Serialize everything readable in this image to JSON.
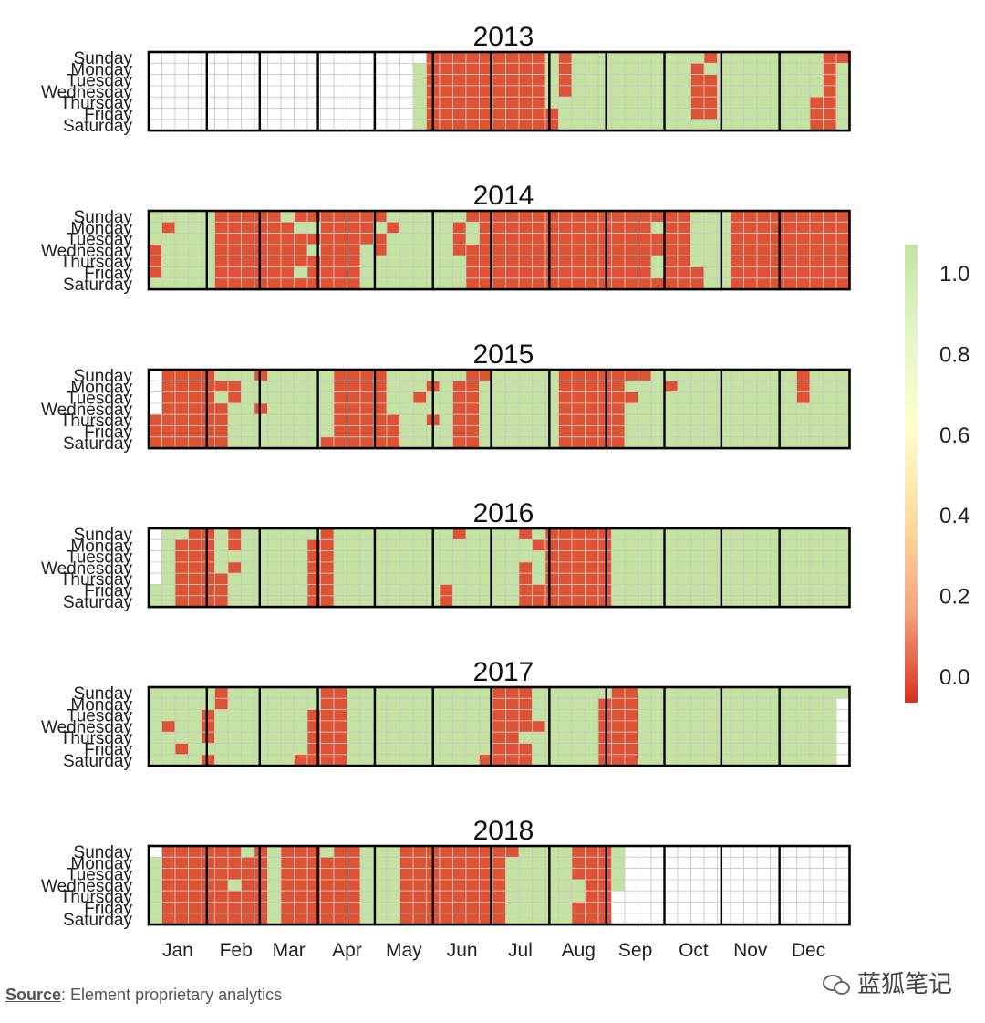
{
  "chart_data": {
    "type": "heatmap",
    "title": "",
    "years": [
      "2013",
      "2014",
      "2015",
      "2016",
      "2017",
      "2018"
    ],
    "weekdays": [
      "Sunday",
      "Monday",
      "Tuesday",
      "Wednesday",
      "Thursday",
      "Friday",
      "Saturday"
    ],
    "months": [
      "Jan",
      "Feb",
      "Mar",
      "Apr",
      "May",
      "Jun",
      "Jul",
      "Aug",
      "Sep",
      "Oct",
      "Nov",
      "Dec"
    ],
    "colorbar": {
      "min": 0.0,
      "max": 1.0,
      "ticks": [
        "1.0",
        "0.8",
        "0.6",
        "0.4",
        "0.2",
        "0.0"
      ],
      "low_color": "#e34a33",
      "high_color": "#c7e5a0"
    },
    "grid": true,
    "legend": "right",
    "value_scale": "0 = red, 1 = green; values are per-day weekly patterns",
    "color_low": "#de5334",
    "color_high": "#c5e3a0",
    "color_missing": "#ffffff",
    "years_data": [
      {
        "year": "2013",
        "weeks": [
          "NNNNNNN",
          "NNNNNNN",
          "NNNNNNN",
          "NNNNNNN",
          "NNNNNNN",
          "NNNNNNN",
          "NNNNNNN",
          "NNNNNNN",
          "NNNNNNN",
          "NNNNNNN",
          "NNNNNNN",
          "NNNNNNN",
          "NNNNNNN",
          "NNNNNNN",
          "NNNNNNN",
          "NNNNNNN",
          "NNNNNNN",
          "NNNNNNN",
          "NNNNNNN",
          "NNNNNNN",
          "NGGGGGG",
          "RRRRRRR",
          "RRRRRRR",
          "RRRRRRR",
          "RRRRRRR",
          "RRRRRRR",
          "RRRRRRR",
          "RRRRRRR",
          "RRRRRRR",
          "RRRRRRR",
          "GGGGGRR",
          "RRRRGGG",
          "GGGGGGG",
          "GGGGGGG",
          "GGGGGGG",
          "GGGGGGG",
          "GGGGGGG",
          "GGGGGGG",
          "GGGGGGG",
          "GGGGGGG",
          "GGGGGGG",
          "GRRRRRG",
          "RGRRRRG",
          "GGGGGGG",
          "GGGGGGG",
          "GGGGGGG",
          "GGGGGGG",
          "GGGGGGG",
          "GGGGGGG",
          "GGGGGGG",
          "GGGGRRR",
          "RRRRRRR",
          "RGGGGGGN"
        ]
      },
      {
        "year": "2014",
        "weeks": [
          "GGGRRRG",
          "GRGGGGG",
          "GGGGGGG",
          "GGGGGGG",
          "GGGGGGG",
          "RRRRRRR",
          "RRRRRRR",
          "RRRRRRR",
          "RRRRRRR",
          "RRRRRRR",
          "GRRRRRR",
          "RGRRRGR",
          "RGRGRRR",
          "RRRRRRR",
          "RRRRRRR",
          "RRRRRRR",
          "RRRGGGG",
          "RGRRGGG",
          "GRGGGGG",
          "GGGGGGG",
          "GGGGGGG",
          "GGGGGGG",
          "GGGGGGG",
          "GRRRGGG",
          "RGGRRRR",
          "RRRRRRR",
          "RRRRRRR",
          "RRRRRRR",
          "RRRRRRR",
          "RRRRRRR",
          "RRRRRRR",
          "RRRRRRR",
          "RRRRRRR",
          "RRRRRRR",
          "RRRRRRR",
          "RRRRRRR",
          "RRRRRRR",
          "RRRRRRR",
          "RGRRGGR",
          "RRRRRRR",
          "RRRRRRR",
          "GGGGGRR",
          "GGGGGGG",
          "GGGGGGG",
          "RRRRRRR",
          "RRRRRRR",
          "RRRRRRR",
          "RRRRRRR",
          "RRRRRRR",
          "RRRRRRR",
          "RRRRRRR",
          "RRRRRRR",
          "RRRRRRR"
        ]
      },
      {
        "year": "2015",
        "weeks": [
          "NNNNRRR",
          "RRRRRRR",
          "RRRRRRR",
          "RRRRRRR",
          "RRRRRRR",
          "GRGRRRR",
          "GRRGGGG",
          "GGGGGGG",
          "RGGRGGG",
          "GGGGGGG",
          "GGGGGGG",
          "GGGGGGG",
          "GGGGGGG",
          "GGGGGGR",
          "RRRRRRR",
          "RRRRRRR",
          "RRRRRRR",
          "RRRRRRR",
          "GGGGRRR",
          "GGGGGGG",
          "GGRGGGG",
          "GRGGRGG",
          "GGGGGGG",
          "GRRRRRR",
          "RRRRRRR",
          "RGGGGGG",
          "GGGGGGG",
          "GGGGGGG",
          "GGGGGGG",
          "GGGGGGG",
          "GGGGGGG",
          "RRRRRRR",
          "RRRRRRR",
          "RRRRRRR",
          "RRRRRRR",
          "RRRRRRR",
          "RGRGGGG",
          "RGGGGGG",
          "GGGGGGG",
          "GRGGGGG",
          "GGGGGGG",
          "GGGGGGG",
          "GGGGGGG",
          "GGGGGGG",
          "GGGGGGG",
          "GGGGGGG",
          "GGGGGGG",
          "GGGGGGG",
          "GGGGGGG",
          "RRRGGGG",
          "GGGGGGG",
          "GGGGGGG",
          "GGGGGGG"
        ]
      },
      {
        "year": "2016",
        "weeks": [
          "NNNNNGG",
          "GGGGGGG",
          "GRRRRRR",
          "RRRRRRR",
          "RRRRRRR",
          "GGGGRRR",
          "RRGRGGG",
          "GGGGGGG",
          "GGGGGGG",
          "GGGGGGG",
          "GGGGGGG",
          "GGGGGGG",
          "GRRRRRR",
          "RRRRRRR",
          "GGGGGGG",
          "GGGGGGG",
          "GGGGGGG",
          "GGGGGGG",
          "GGGGGGG",
          "GGGGGGG",
          "GGGGGGG",
          "GGGGGGG",
          "GGGGGRR",
          "RGGGGGG",
          "GGGGGGG",
          "GGGGGGG",
          "GGGGGGG",
          "GGGGGGG",
          "RGGRRRR",
          "GRGGGRR",
          "RRRRRRR",
          "RRRRRRR",
          "RRRRRRR",
          "RRRRRRR",
          "RRRRRRR",
          "GGGGGGG",
          "GGGGGGG",
          "GGGGGGG",
          "GGGGGGG",
          "GGGGGGG",
          "GGGGGGG",
          "GGGGGGG",
          "GGGGGGG",
          "GGGGGGG",
          "GGGGGGG",
          "GGGGGGG",
          "GGGGGGG",
          "GGGGGGG",
          "GGGGGGG",
          "GGGGGGG",
          "GGGGGGG",
          "GGGGGGG",
          "GGGGGGG"
        ]
      },
      {
        "year": "2017",
        "weeks": [
          "GGGGGGG",
          "GGGRGGG",
          "GGGGGRG",
          "GGGGGGG",
          "GGRRRGR",
          "RRGGGGG",
          "GGGGGGG",
          "GGGGGGG",
          "GGGGGGG",
          "GGGGGGG",
          "GGGGGGG",
          "GGGGGGR",
          "GGRRRRR",
          "RRRRRRR",
          "RRRRRRR",
          "GGGGGGG",
          "GGGGGGG",
          "GGGGGGG",
          "GGGGGGG",
          "GGGGGGG",
          "GGGGGGG",
          "GGGGGGG",
          "GGGGGGG",
          "GGGGGGG",
          "GGGGGGG",
          "GGGGGGR",
          "RRRRRRR",
          "RRRRRRR",
          "RRRRGRR",
          "GGGRGGG",
          "GGGGGGG",
          "GGGGGGG",
          "GGGGGGG",
          "GGGGGGG",
          "GRRRRRR",
          "RRRRRRR",
          "RRRRRRR",
          "GGGGGGG",
          "GGGGGGG",
          "GGGGGGG",
          "GGGGGGG",
          "GGGGGGG",
          "GGGGGGG",
          "GGGGGGG",
          "GGGGGGG",
          "GGGGGGG",
          "GGGGGGG",
          "GGGGGGG",
          "GGGGGGG",
          "GGGGGGG",
          "GGGGGGG",
          "GGGGGGG",
          "GNNNNNN"
        ]
      },
      {
        "year": "2018",
        "weeks": [
          "NGGGGGG",
          "RRRRRRR",
          "RRRRRRR",
          "RRRRRRR",
          "RRRRRRR",
          "RRRRRRR",
          "RRRGRRR",
          "GRRRRRR",
          "RRRRRRR",
          "GGGGGGG",
          "RRRRRRR",
          "RRRRRRR",
          "RRRRRRR",
          "GRRRRRR",
          "RRRRRRR",
          "RRRRRRR",
          "GGGGGGG",
          "GGGGGGG",
          "GGGGGGG",
          "RRRRRRR",
          "RRRRRRR",
          "RRRRRRR",
          "RRRRRRR",
          "RRRRRRR",
          "RRRRRRR",
          "RRRRRRR",
          "RRRRRRR",
          "RGGGGGG",
          "GGGGGGG",
          "GGGGGGG",
          "GGGGGGG",
          "GGGGGGG",
          "RRRGGRR",
          "RRRRRRR",
          "RRRRRRR",
          "GGGGNNN",
          "NNNNNNN",
          "NNNNNNN",
          "NNNNNNN",
          "NNNNNNN",
          "NNNNNNN",
          "NNNNNNN",
          "NNNNNNN",
          "NNNNNNN",
          "NNNNNNN",
          "NNNNNNN",
          "NNNNNNN",
          "NNNNNNN",
          "NNNNNNN",
          "NNNNNNN",
          "NNNNNNN",
          "NNNNNNN",
          "NNNNNNN"
        ]
      }
    ]
  },
  "footer": {
    "source_label": "Source",
    "source_text": ": Element proprietary analytics"
  },
  "watermark": {
    "text": "蓝狐笔记"
  }
}
